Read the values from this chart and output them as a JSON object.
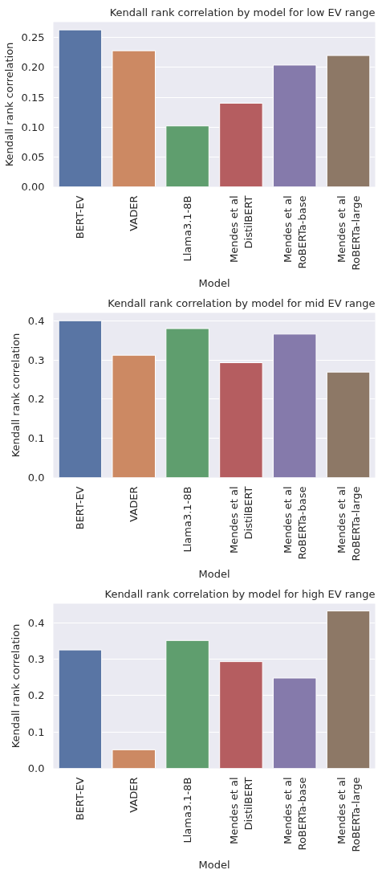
{
  "chart_data": [
    {
      "type": "bar",
      "title": "Kendall rank correlation by model for low EV range",
      "xlabel": "Model",
      "ylabel": "Kendall rank correlation",
      "categories": [
        "BERT-EV",
        "VADER",
        "Llama3.1-8B",
        "Mendes et al\nDistilBERT",
        "Mendes et al\nRoBERTa-base",
        "Mendes et al\nRoBERTa-large"
      ],
      "values": [
        0.263,
        0.228,
        0.102,
        0.14,
        0.204,
        0.22
      ],
      "colors": [
        "#5975a4",
        "#cc8963",
        "#5f9e6e",
        "#b55d60",
        "#857aab",
        "#8d7866"
      ],
      "ylim": [
        0,
        0.276
      ],
      "yticks": [
        {
          "value": 0,
          "label": "0.00"
        },
        {
          "value": 0.05,
          "label": "0.05"
        },
        {
          "value": 0.1,
          "label": "0.10"
        },
        {
          "value": 0.15,
          "label": "0.15"
        },
        {
          "value": 0.2,
          "label": "0.20"
        },
        {
          "value": 0.25,
          "label": "0.25"
        }
      ],
      "grid": "y"
    },
    {
      "type": "bar",
      "title": "Kendall rank correlation by model for mid EV range",
      "xlabel": "Model",
      "ylabel": "Kendall rank correlation",
      "categories": [
        "BERT-EV",
        "VADER",
        "Llama3.1-8B",
        "Mendes et al\nDistilBERT",
        "Mendes et al\nRoBERTa-base",
        "Mendes et al\nRoBERTa-large"
      ],
      "values": [
        0.4,
        0.312,
        0.38,
        0.293,
        0.366,
        0.269
      ],
      "colors": [
        "#5975a4",
        "#cc8963",
        "#5f9e6e",
        "#b55d60",
        "#857aab",
        "#8d7866"
      ],
      "ylim": [
        0,
        0.42
      ],
      "yticks": [
        {
          "value": 0,
          "label": "0.0"
        },
        0.1,
        0.2,
        0.3,
        0.4
      ],
      "grid": "y"
    },
    {
      "type": "bar",
      "title": "Kendall rank correlation by model for high EV range",
      "xlabel": "Model",
      "ylabel": "Kendall rank correlation",
      "categories": [
        "BERT-EV",
        "VADER",
        "Llama3.1-8B",
        "Mendes et al\nDistilBERT",
        "Mendes et al\nRoBERTa-base",
        "Mendes et al\nRoBERTa-large"
      ],
      "values": [
        0.325,
        0.051,
        0.351,
        0.293,
        0.248,
        0.432
      ],
      "colors": [
        "#5975a4",
        "#cc8963",
        "#5f9e6e",
        "#b55d60",
        "#857aab",
        "#8d7866"
      ],
      "ylim": [
        0,
        0.452
      ],
      "yticks": [
        {
          "value": 0,
          "label": "0.0"
        },
        0.1,
        0.2,
        0.3,
        0.4
      ],
      "grid": "y"
    }
  ]
}
